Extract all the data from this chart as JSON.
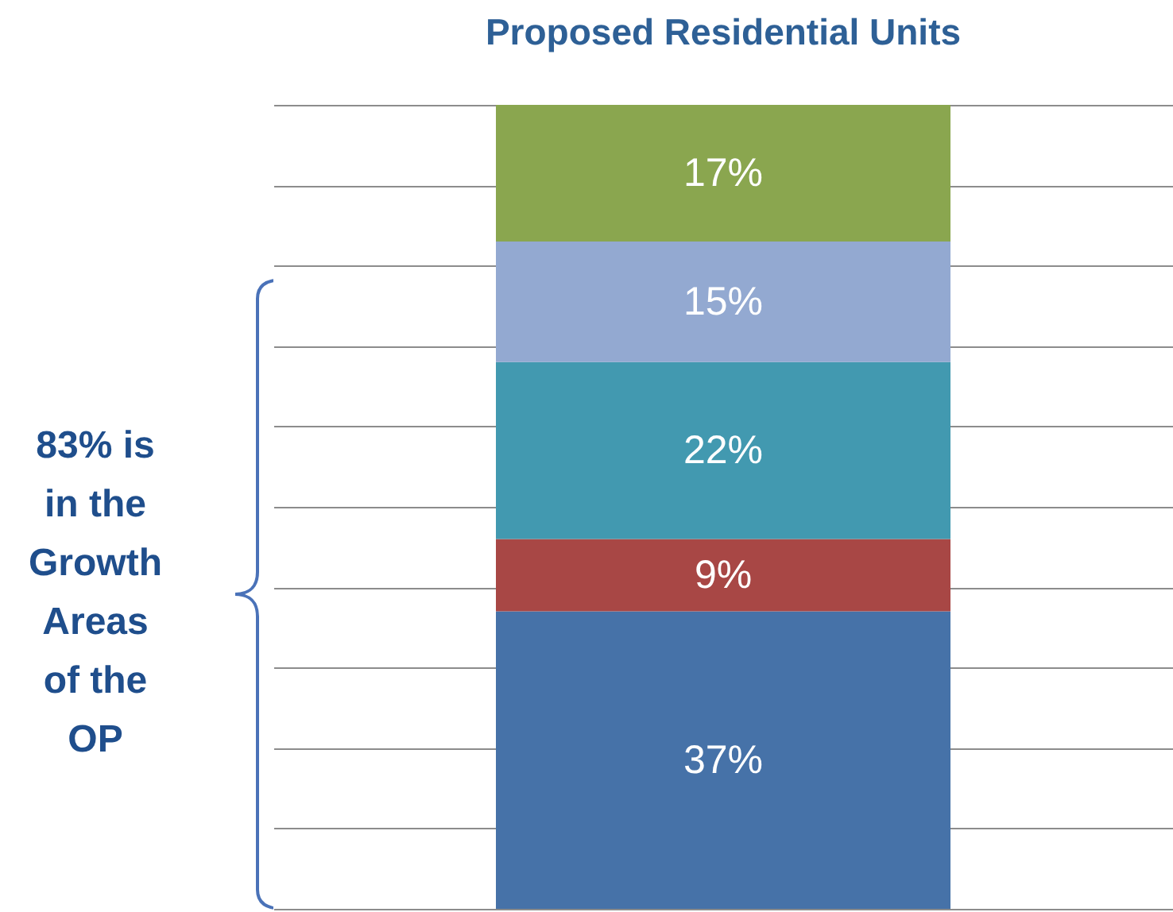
{
  "chart_data": {
    "type": "bar",
    "title": "Proposed Residential Units",
    "stacked": true,
    "categories": [
      null
    ],
    "series": [
      {
        "color": "#4672a8",
        "values": [
          37
        ],
        "value_labels": [
          "37%"
        ]
      },
      {
        "color": "#a84745",
        "values": [
          9
        ],
        "value_labels": [
          "9%"
        ]
      },
      {
        "color": "#4299b0",
        "values": [
          22
        ],
        "value_labels": [
          "22%"
        ]
      },
      {
        "color": "#93a9d1",
        "values": [
          15
        ],
        "value_labels": [
          "15%"
        ]
      },
      {
        "color": "#8aa64f",
        "values": [
          17
        ],
        "value_labels": [
          "17%"
        ]
      }
    ],
    "ylim": [
      0,
      100
    ],
    "yticks": [
      {
        "value": 0,
        "label": null
      },
      {
        "value": 10,
        "label": null
      },
      {
        "value": 20,
        "label": null
      },
      {
        "value": 30,
        "label": null
      },
      {
        "value": 40,
        "label": null
      },
      {
        "value": 50,
        "label": null
      },
      {
        "value": 60,
        "label": null
      },
      {
        "value": 70,
        "label": null
      },
      {
        "value": 80,
        "label": null
      },
      {
        "value": 90,
        "label": null
      },
      {
        "value": 100,
        "label": null
      }
    ],
    "grid": "y",
    "annotations": [
      "83% is in the Growth Areas of the OP"
    ]
  }
}
